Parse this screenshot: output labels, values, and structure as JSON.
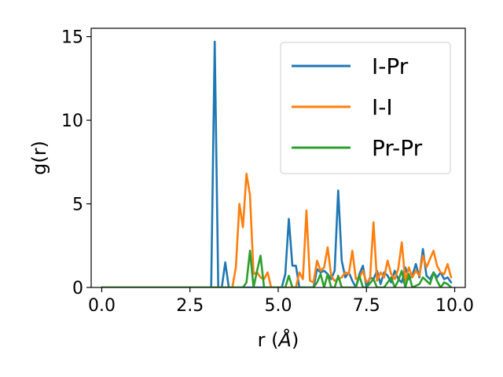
{
  "chart_data": {
    "type": "line",
    "title": "",
    "xlabel_prefix": "r (",
    "xlabel_unit": "Å",
    "xlabel_suffix": ")",
    "ylabel": "g(r)",
    "xlim": [
      -0.3,
      10.3
    ],
    "ylim": [
      0,
      15.5
    ],
    "x_ticks": [
      0.0,
      2.5,
      5.0,
      7.5,
      10.0
    ],
    "x_tick_labels": [
      "0.0",
      "2.5",
      "5.0",
      "7.5",
      "10.0"
    ],
    "y_ticks": [
      0,
      5,
      10,
      15
    ],
    "y_tick_labels": [
      "0",
      "5",
      "10",
      "15"
    ],
    "grid": false,
    "legend_position": "top-right",
    "series": [
      {
        "name": "I-Pr",
        "color": "#1f77b4",
        "x": [
          0,
          1.0,
          2.0,
          3.0,
          3.1,
          3.2,
          3.3,
          3.4,
          3.5,
          3.6,
          3.7,
          3.8,
          5.1,
          5.2,
          5.3,
          5.4,
          5.5,
          5.6,
          5.7,
          5.8,
          5.9,
          6.0,
          6.1,
          6.2,
          6.3,
          6.4,
          6.5,
          6.6,
          6.7,
          6.8,
          6.9,
          7.0,
          7.1,
          7.2,
          7.3,
          7.4,
          7.5,
          7.6,
          7.7,
          7.8,
          7.9,
          8.0,
          8.1,
          8.2,
          8.3,
          8.4,
          8.5,
          8.6,
          8.7,
          8.8,
          8.9,
          9.0,
          9.1,
          9.2,
          9.3,
          9.4,
          9.5,
          9.6,
          9.7,
          9.8,
          9.9
        ],
        "y": [
          0,
          0,
          0,
          0,
          0,
          14.7,
          0,
          0,
          1.5,
          0,
          0,
          0,
          0,
          0.8,
          4.1,
          1.3,
          1.3,
          0,
          0,
          0,
          0,
          0,
          1.1,
          0.9,
          1.0,
          0.8,
          0.5,
          1.0,
          5.8,
          1.6,
          0.6,
          0.9,
          0.4,
          0,
          0.8,
          1.3,
          0,
          0.6,
          0.5,
          1.0,
          0.2,
          0.9,
          0.7,
          0.3,
          1.0,
          0.5,
          0.3,
          1.2,
          0.5,
          0.7,
          1.4,
          0.6,
          2.3,
          0.7,
          0.5,
          0.9,
          0.6,
          0.9,
          0.5,
          0.6,
          0.3
        ]
      },
      {
        "name": "I-I",
        "color": "#ff7f0e",
        "x": [
          0,
          1.0,
          2.0,
          3.0,
          3.7,
          3.8,
          3.9,
          4.0,
          4.1,
          4.2,
          4.3,
          4.4,
          4.5,
          4.6,
          4.7,
          4.8,
          4.9,
          5.0,
          5.5,
          5.6,
          5.7,
          5.8,
          5.9,
          6.0,
          6.1,
          6.2,
          6.3,
          6.4,
          6.5,
          6.6,
          6.7,
          6.8,
          6.9,
          7.0,
          7.1,
          7.2,
          7.3,
          7.4,
          7.5,
          7.6,
          7.7,
          7.8,
          7.9,
          8.0,
          8.1,
          8.2,
          8.3,
          8.4,
          8.5,
          8.6,
          8.7,
          8.8,
          8.9,
          9.0,
          9.1,
          9.2,
          9.3,
          9.4,
          9.5,
          9.6,
          9.7,
          9.8,
          9.9
        ],
        "y": [
          0,
          0,
          0,
          0,
          0,
          1.2,
          5.0,
          3.6,
          6.8,
          5.5,
          0.8,
          0.9,
          0.6,
          0.5,
          0.9,
          0,
          0,
          0,
          0,
          0.9,
          0.5,
          4.6,
          0.4,
          0.3,
          1.6,
          1.0,
          1.2,
          2.4,
          0.7,
          0.4,
          0.5,
          0.6,
          0.9,
          0.8,
          2.2,
          0.5,
          0.6,
          1.0,
          0.3,
          0.5,
          3.9,
          0.4,
          0.9,
          0.6,
          1.6,
          0.8,
          0.5,
          1.1,
          2.7,
          0.4,
          1.2,
          0.6,
          1.0,
          0.7,
          1.9,
          1.2,
          1.7,
          2.2,
          1.3,
          0.9,
          0.8,
          1.4,
          0.6
        ]
      },
      {
        "name": "Pr-Pr",
        "color": "#2ca02c",
        "x": [
          0,
          1.0,
          2.0,
          3.0,
          4.0,
          4.1,
          4.2,
          4.3,
          4.4,
          4.5,
          4.6,
          4.7,
          5.0,
          5.2,
          5.3,
          5.4,
          5.5,
          6.0,
          6.1,
          6.2,
          6.3,
          6.4,
          6.5,
          6.6,
          6.7,
          6.8,
          6.9,
          7.0,
          7.2,
          7.3,
          7.4,
          7.5,
          7.7,
          7.8,
          7.9,
          8.0,
          8.2,
          8.3,
          8.4,
          8.5,
          8.6,
          8.7,
          8.8,
          9.0,
          9.1,
          9.2,
          9.3,
          9.4,
          9.5,
          9.6,
          9.7,
          9.8,
          9.9
        ],
        "y": [
          0,
          0,
          0,
          0,
          0,
          0.3,
          2.2,
          0,
          1.0,
          1.9,
          0,
          0,
          0,
          0,
          0.7,
          0,
          0,
          0,
          0.3,
          0.8,
          0,
          0.8,
          0,
          0,
          0.7,
          0,
          0,
          0,
          0,
          0.7,
          0,
          0,
          0.5,
          0,
          0,
          0,
          0.6,
          0,
          0.4,
          1.0,
          0,
          0.8,
          0,
          0.2,
          0.6,
          0.4,
          0.2,
          0.9,
          0.4,
          0,
          0.3,
          0.2,
          0
        ]
      }
    ]
  }
}
